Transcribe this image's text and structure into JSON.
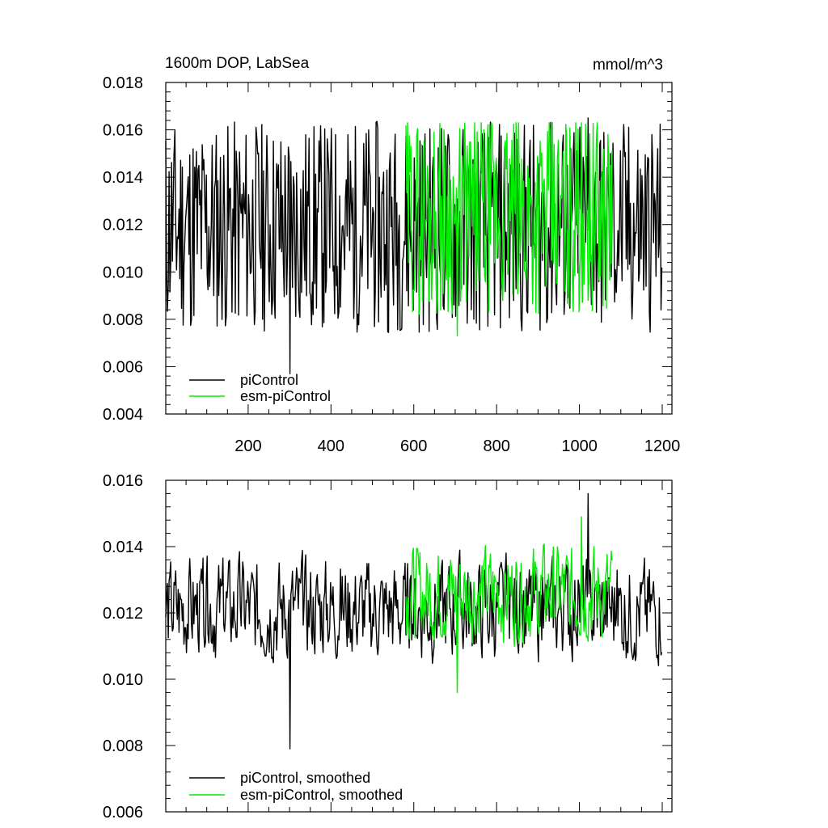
{
  "colors": {
    "piControl": "#000000",
    "esm_piControl": "#00ee00",
    "background": "#ffffff"
  },
  "chart_data": [
    {
      "type": "line",
      "title_left": "1600m DOP, LabSea",
      "title_right": "mmol/m^3",
      "xlim": [
        1,
        1200
      ],
      "ylim": [
        0.004,
        0.018
      ],
      "yticks": [
        "0.004",
        "0.006",
        "0.008",
        "0.010",
        "0.012",
        "0.014",
        "0.016",
        "0.018"
      ],
      "xticks": [
        "200",
        "400",
        "600",
        "800",
        "1000",
        "1200"
      ],
      "legend_placement": "bottom-left",
      "series": [
        {
          "name": "piControl",
          "color": "#000000",
          "x_range": [
            1,
            1200
          ],
          "mean": 0.0119,
          "min": 0.0057,
          "max": 0.0165,
          "amplitude": 0.0045,
          "seed": 11,
          "smoothed": false
        },
        {
          "name": "esm-piControl",
          "color": "#00ee00",
          "x_range": [
            581,
            1080
          ],
          "mean": 0.0124,
          "min": 0.0073,
          "max": 0.0163,
          "amplitude": 0.0042,
          "seed": 29,
          "smoothed": false
        }
      ]
    },
    {
      "type": "line",
      "xlim": [
        1,
        1200
      ],
      "ylim": [
        0.006,
        0.016
      ],
      "yticks": [
        "0.006",
        "0.008",
        "0.010",
        "0.012",
        "0.014",
        "0.016"
      ],
      "legend_placement": "bottom-left",
      "series": [
        {
          "name": "piControl, smoothed",
          "color": "#000000",
          "x_range": [
            1,
            1200
          ],
          "mean": 0.0121,
          "min": 0.0079,
          "max": 0.0156,
          "amplitude": 0.002,
          "seed": 11,
          "smoothed": true
        },
        {
          "name": "esm-piControl, smoothed",
          "color": "#00ee00",
          "x_range": [
            581,
            1080
          ],
          "mean": 0.0126,
          "min": 0.0096,
          "max": 0.0149,
          "amplitude": 0.0019,
          "seed": 29,
          "smoothed": true
        }
      ]
    }
  ]
}
